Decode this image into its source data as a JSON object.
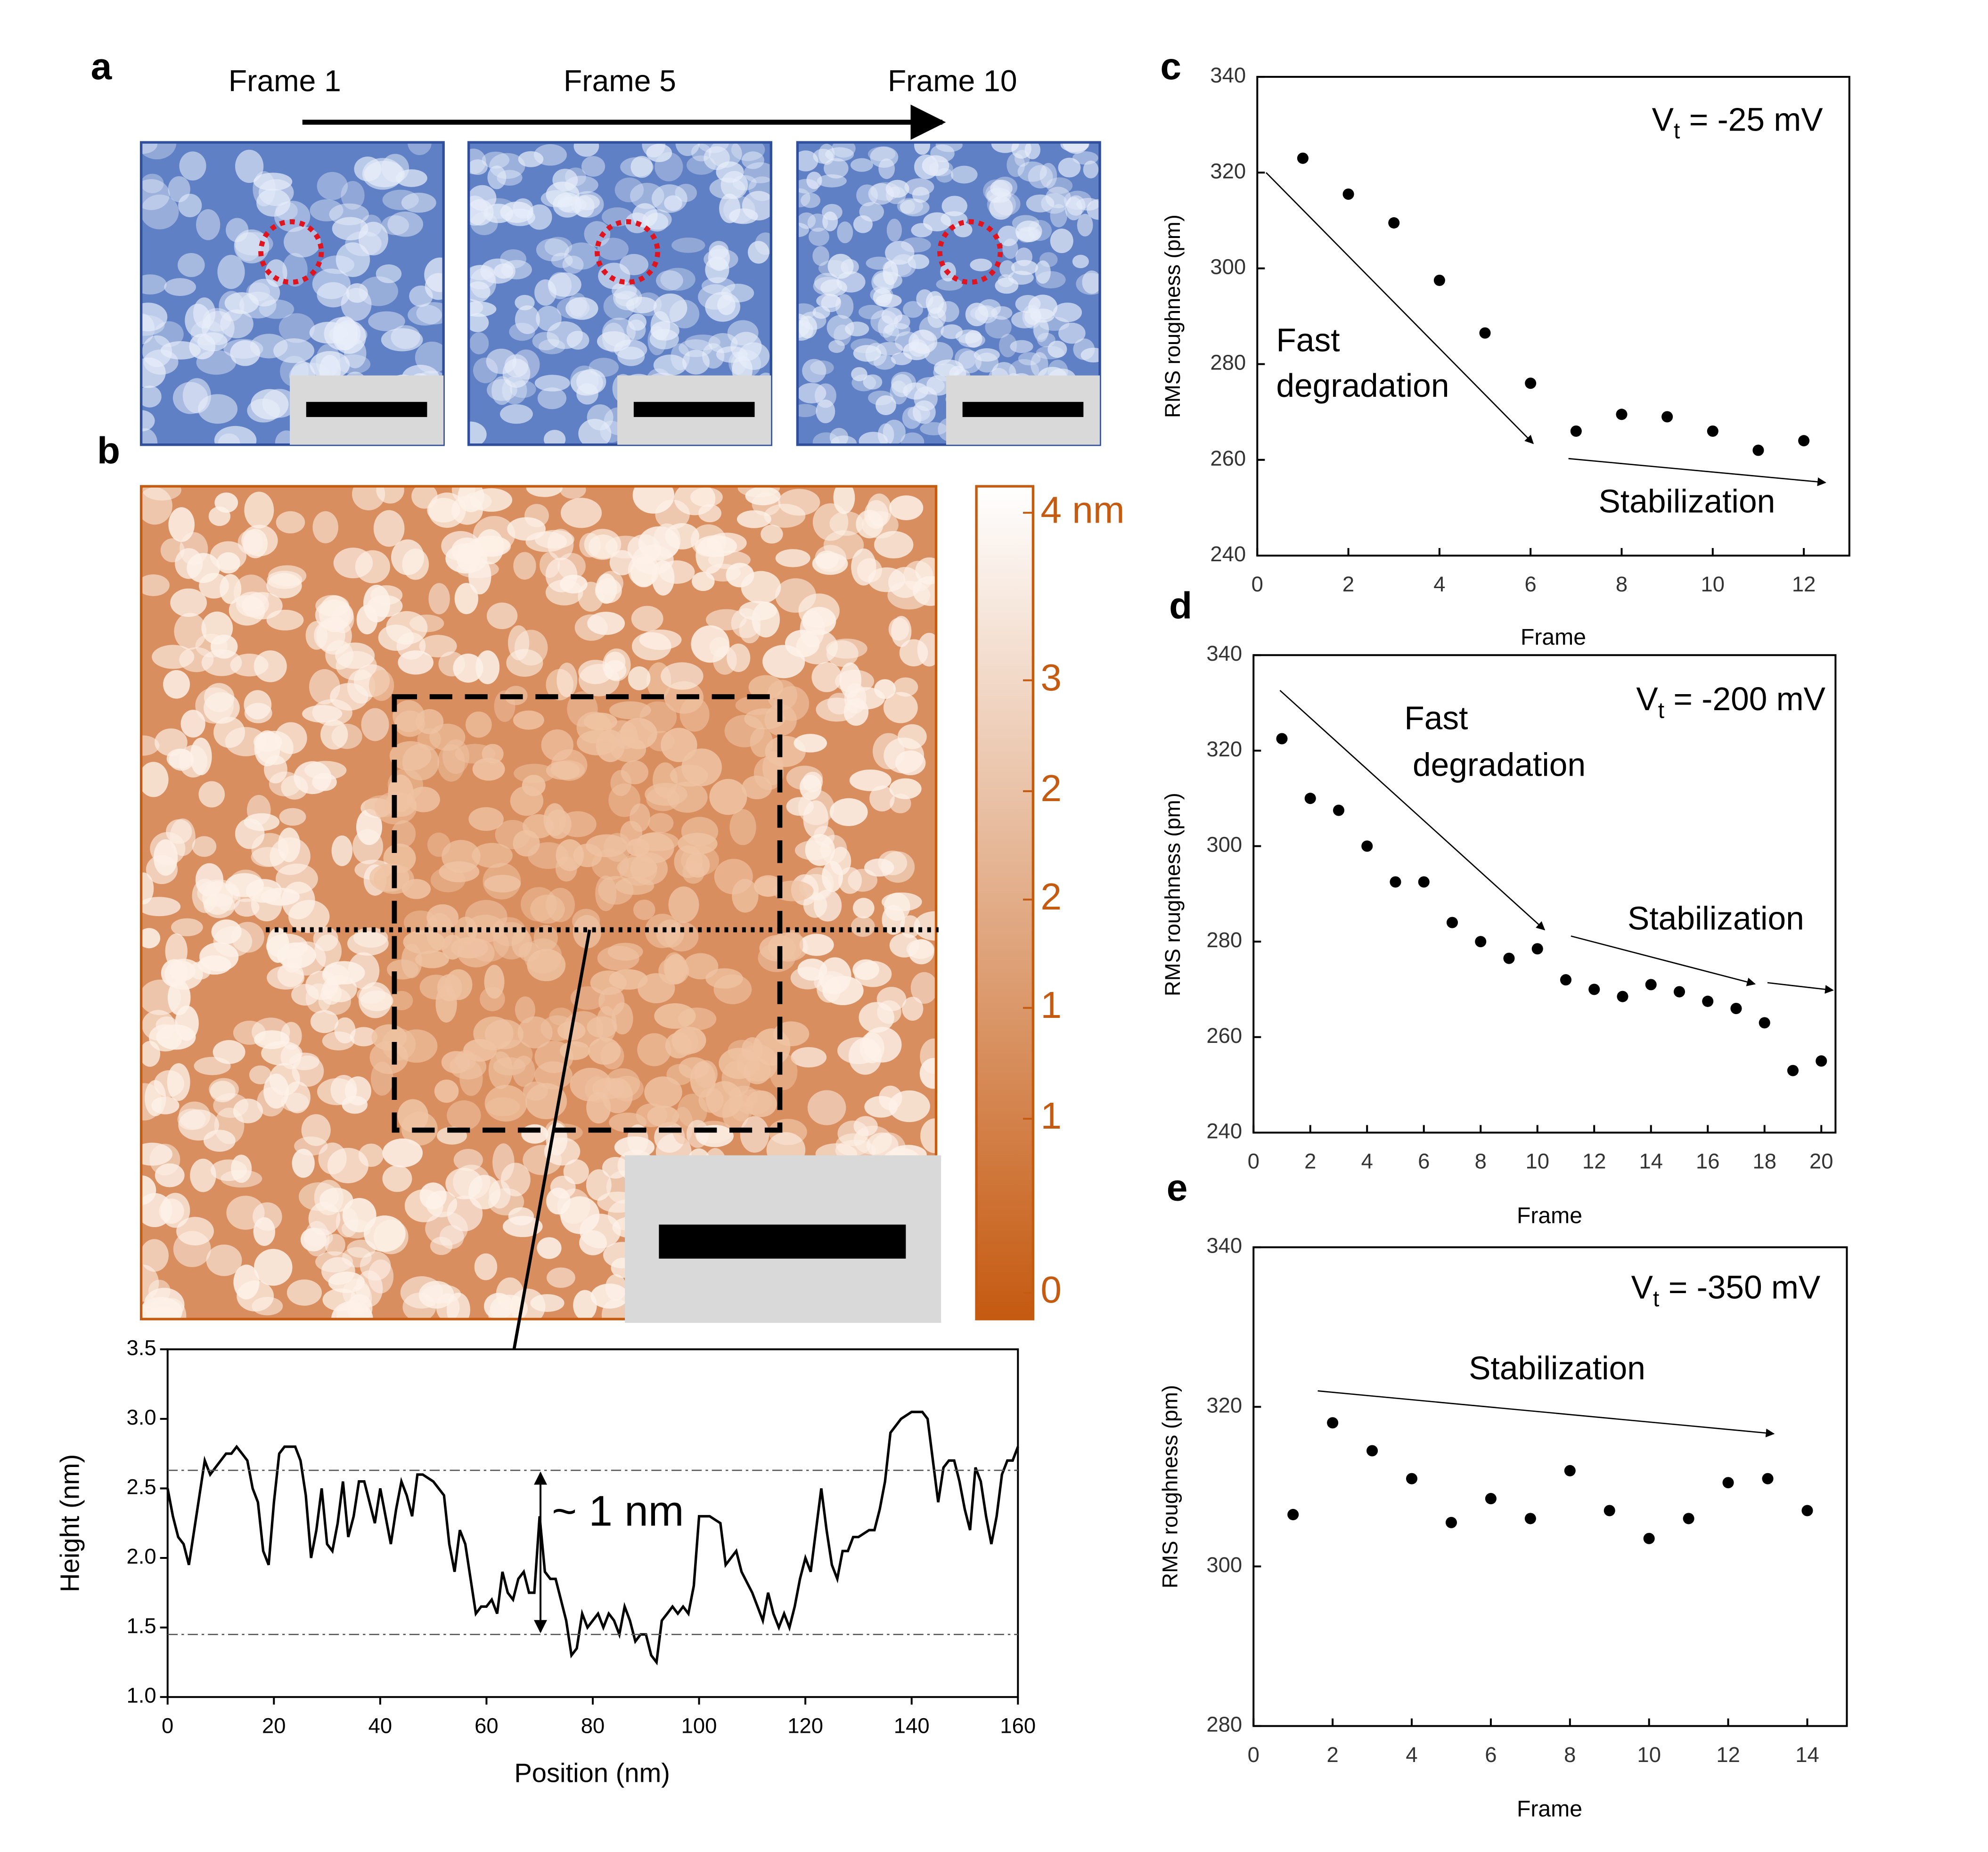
{
  "panel_labels": [
    "a",
    "b",
    "c",
    "d",
    "e"
  ],
  "frames": [
    "Frame 1",
    "Frame 5",
    "Frame 10"
  ],
  "colorbar_labels": [
    "4 nm",
    "3",
    "2",
    "2",
    "1",
    "1",
    "0"
  ],
  "chart_data": [
    {
      "type": "line",
      "xlabel": "Position (nm)",
      "ylabel": "Height (nm)",
      "x": [
        0,
        1,
        2,
        3,
        4,
        5,
        6,
        7,
        8,
        9,
        10,
        11,
        12,
        13,
        14,
        15,
        16,
        17,
        18,
        19,
        20,
        21,
        22,
        24,
        25,
        26,
        27,
        28,
        29,
        30,
        31,
        32,
        33,
        34,
        35,
        36,
        37,
        38,
        39,
        40,
        41,
        42,
        43,
        44,
        45,
        46,
        47,
        48,
        50,
        52,
        53,
        54,
        55,
        56,
        57,
        58,
        59,
        60,
        61,
        62,
        63,
        64,
        65,
        66,
        67,
        68,
        69,
        70,
        71,
        72,
        73,
        74,
        75,
        76,
        77,
        78,
        79,
        80,
        81,
        82,
        83,
        84,
        85,
        86,
        87,
        88,
        89,
        90,
        91,
        92,
        93,
        94,
        95,
        96,
        97,
        98,
        99,
        100,
        102,
        104,
        105,
        106,
        107,
        108,
        110,
        111,
        112,
        113,
        114,
        115,
        116,
        117,
        118,
        119,
        120,
        121,
        122,
        123,
        124,
        125,
        126,
        127,
        128,
        129,
        130,
        132,
        133,
        134,
        135,
        136,
        137,
        138,
        140,
        142,
        143,
        144,
        145,
        146,
        147,
        148,
        149,
        150,
        151,
        152,
        153,
        154,
        155,
        156,
        157,
        158,
        159,
        160
      ],
      "values": [
        2.5,
        2.3,
        2.15,
        2.1,
        1.95,
        2.2,
        2.45,
        2.7,
        2.6,
        2.65,
        2.7,
        2.75,
        2.75,
        2.8,
        2.75,
        2.7,
        2.5,
        2.4,
        2.05,
        1.95,
        2.4,
        2.75,
        2.8,
        2.8,
        2.7,
        2.45,
        2.0,
        2.2,
        2.5,
        2.1,
        2.05,
        2.25,
        2.55,
        2.15,
        2.3,
        2.55,
        2.55,
        2.4,
        2.25,
        2.5,
        2.3,
        2.1,
        2.35,
        2.55,
        2.45,
        2.3,
        2.6,
        2.6,
        2.55,
        2.45,
        2.1,
        1.9,
        2.2,
        2.1,
        1.85,
        1.6,
        1.65,
        1.65,
        1.7,
        1.6,
        1.9,
        1.75,
        1.7,
        1.85,
        1.9,
        1.75,
        1.75,
        2.3,
        1.9,
        1.85,
        1.85,
        1.7,
        1.55,
        1.3,
        1.35,
        1.6,
        1.5,
        1.55,
        1.6,
        1.5,
        1.6,
        1.55,
        1.45,
        1.65,
        1.55,
        1.4,
        1.45,
        1.45,
        1.3,
        1.25,
        1.55,
        1.6,
        1.65,
        1.6,
        1.65,
        1.6,
        1.8,
        2.3,
        2.3,
        2.25,
        1.95,
        2.0,
        2.05,
        1.9,
        1.75,
        1.65,
        1.55,
        1.75,
        1.6,
        1.5,
        1.6,
        1.5,
        1.65,
        1.85,
        2.0,
        1.9,
        2.2,
        2.5,
        2.2,
        1.95,
        1.85,
        2.05,
        2.05,
        2.15,
        2.15,
        2.2,
        2.2,
        2.35,
        2.55,
        2.9,
        2.95,
        3.0,
        3.05,
        3.05,
        3.0,
        2.7,
        2.4,
        2.65,
        2.7,
        2.7,
        2.55,
        2.35,
        2.2,
        2.65,
        2.55,
        2.3,
        2.1,
        2.3,
        2.6,
        2.7,
        2.7,
        2.8
      ],
      "color": "#000000",
      "xlim": [
        0,
        160
      ],
      "xticks": [
        0,
        20,
        40,
        60,
        80,
        100,
        120,
        140,
        160
      ],
      "ylim": [
        1.0,
        3.5
      ],
      "yticks": [
        {
          "value": 1.0,
          "label": "1.0"
        },
        1.5,
        {
          "value": 2.0,
          "label": "2.0"
        },
        2.5,
        {
          "value": 3.0,
          "label": "3.0"
        },
        3.5
      ],
      "reference_lines": [
        2.63,
        1.45
      ],
      "annotations": [
        "~ 1 nm"
      ]
    },
    {
      "type": "scatter",
      "xlabel": "Frame",
      "ylabel": "RMS roughness (pm)",
      "condition": {
        "symbol": "V",
        "subscript": "t",
        "value": " = -25 mV"
      },
      "x": [
        1,
        2,
        3,
        4,
        5,
        6,
        7,
        8,
        9,
        10,
        11,
        12
      ],
      "values": [
        323,
        315.5,
        309.5,
        297.5,
        286.5,
        276,
        266,
        269.5,
        269,
        266,
        262,
        264
      ],
      "color": "#000000",
      "xlim": [
        0,
        13
      ],
      "xticks": [
        0,
        2,
        4,
        6,
        8,
        10,
        12
      ],
      "ylim": [
        240,
        340
      ],
      "yticks": [
        240,
        260,
        280,
        300,
        320,
        340
      ],
      "annotations": [
        "Fast",
        "degradation",
        "Stabilization"
      ]
    },
    {
      "type": "scatter",
      "xlabel": "Frame",
      "ylabel": "RMS roughness (pm)",
      "condition": {
        "symbol": "V",
        "subscript": "t",
        "value": " = -200 mV"
      },
      "x": [
        1,
        2,
        3,
        4,
        5,
        6,
        7,
        8,
        9,
        10,
        11,
        12,
        13,
        14,
        15,
        16,
        17,
        18,
        19,
        20
      ],
      "values": [
        322.5,
        310,
        307.5,
        300,
        292.5,
        292.5,
        284,
        280,
        276.5,
        278.5,
        272,
        270,
        268.5,
        271,
        269.5,
        267.5,
        266,
        263,
        253,
        255
      ],
      "color": "#000000",
      "xlim": [
        0,
        20.5
      ],
      "xticks": [
        0,
        2,
        4,
        6,
        8,
        10,
        12,
        14,
        16,
        18,
        20
      ],
      "ylim": [
        240,
        340
      ],
      "yticks": [
        240,
        260,
        280,
        300,
        320,
        340
      ],
      "annotations": [
        "Fast",
        "degradation",
        "Stabilization"
      ]
    },
    {
      "type": "scatter",
      "xlabel": "Frame",
      "ylabel": "RMS roughness (pm)",
      "condition": {
        "symbol": "V",
        "subscript": "t",
        "value": " = -350 mV"
      },
      "x": [
        1,
        2,
        3,
        4,
        5,
        6,
        7,
        8,
        9,
        10,
        11,
        12,
        13,
        14
      ],
      "values": [
        306.5,
        318,
        314.5,
        311,
        305.5,
        308.5,
        306,
        312,
        307,
        303.5,
        306,
        310.5,
        311,
        307
      ],
      "color": "#000000",
      "xlim": [
        0,
        15
      ],
      "xticks": [
        0,
        2,
        4,
        6,
        8,
        10,
        12,
        14
      ],
      "ylim": [
        280,
        340
      ],
      "yticks": [
        280,
        300,
        320,
        340
      ],
      "annotations": [
        "Stabilization"
      ]
    }
  ]
}
